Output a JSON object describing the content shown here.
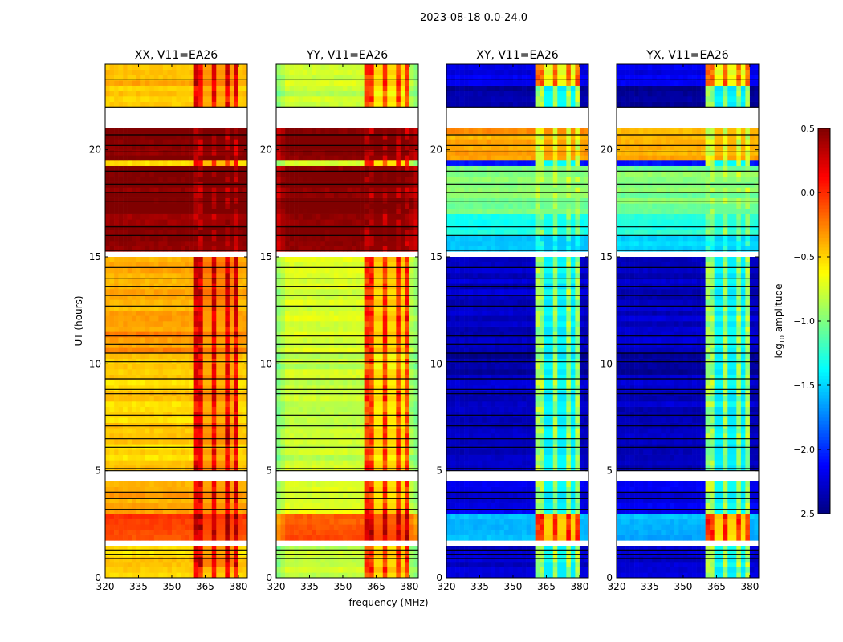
{
  "chart_data": {
    "type": "heatmap",
    "suptitle": "2023-08-18 0.0-24.0",
    "xlabel": "frequency (MHz)",
    "ylabel": "UT (hours)",
    "xlim": [
      320,
      384
    ],
    "ylim": [
      0,
      24
    ],
    "xticks": [
      "320",
      "335",
      "350",
      "365",
      "380"
    ],
    "yticks": [
      "0",
      "5",
      "10",
      "15",
      "20"
    ],
    "panels": [
      {
        "title": "XX, V11=EA26",
        "key": "xx"
      },
      {
        "title": "YY, V11=EA26",
        "key": "yy"
      },
      {
        "title": "XY, V11=EA26",
        "key": "xy"
      },
      {
        "title": "YX, V11=EA26",
        "key": "xy"
      }
    ],
    "colorbar": {
      "label": "log10 amplitude",
      "label_main": "log",
      "label_sub": "10",
      "label_rest": " amplitude",
      "range": [
        -2.5,
        0.5
      ],
      "ticks": [
        "0.5",
        "0.0",
        "−0.5",
        "−1.0",
        "−1.5",
        "−2.0",
        "−2.5"
      ],
      "colormap": "jet"
    },
    "segments_columns": [
      "t_start",
      "t_end",
      "xx_base",
      "xx_rfi",
      "yy_base",
      "yy_rfi",
      "xy_base",
      "xy_rfi"
    ],
    "segments": [
      [
        23.0,
        24.0,
        -0.42,
        0.2,
        -0.75,
        0.0,
        -2.2,
        -0.2
      ],
      [
        22.0,
        23.0,
        -0.5,
        0.1,
        -0.8,
        -0.1,
        -2.4,
        -0.9
      ],
      [
        21.3,
        22.0,
        null,
        null,
        null,
        null,
        null,
        null
      ],
      [
        19.5,
        21.0,
        0.5,
        0.35,
        0.5,
        0.35,
        -0.35,
        -0.7
      ],
      [
        19.2,
        19.5,
        -0.6,
        0.0,
        -0.8,
        -0.1,
        -2.1,
        -0.9
      ],
      [
        17.0,
        19.2,
        0.5,
        0.4,
        0.5,
        0.4,
        -1.0,
        -0.9
      ],
      [
        16.0,
        17.0,
        0.45,
        0.4,
        0.5,
        0.4,
        -1.3,
        -1.0
      ],
      [
        15.3,
        16.0,
        0.5,
        0.4,
        0.5,
        0.4,
        -1.5,
        -1.3
      ],
      [
        15.0,
        15.3,
        null,
        null,
        null,
        null,
        null,
        null
      ],
      [
        12.5,
        15.0,
        -0.4,
        0.25,
        -0.75,
        0.0,
        -2.3,
        -0.9
      ],
      [
        10.5,
        12.5,
        -0.3,
        0.2,
        -0.75,
        0.0,
        -2.3,
        -0.9
      ],
      [
        9.5,
        10.5,
        -0.5,
        0.1,
        -0.8,
        -0.1,
        -2.4,
        -0.9
      ],
      [
        5.0,
        9.5,
        -0.5,
        0.15,
        -0.8,
        -0.05,
        -2.3,
        -0.9
      ],
      [
        4.6,
        5.0,
        null,
        null,
        null,
        null,
        null,
        null
      ],
      [
        3.0,
        4.6,
        -0.35,
        0.2,
        -0.7,
        0.0,
        -2.2,
        -0.9
      ],
      [
        1.7,
        2.9,
        -0.05,
        0.35,
        -0.1,
        0.3,
        -1.6,
        0.0
      ],
      [
        0.6,
        1.6,
        -0.5,
        0.2,
        -0.8,
        0.0,
        -2.3,
        -0.9
      ],
      [
        0.4,
        0.6,
        null,
        null,
        null,
        null,
        null,
        null
      ],
      [
        0.0,
        0.4,
        -0.45,
        0.1,
        -0.8,
        0.0,
        -2.2,
        -0.9
      ]
    ],
    "flag_lines_hours": [
      0.9,
      1.1,
      1.3,
      3.2,
      3.7,
      4.0,
      5.0,
      5.1,
      6.1,
      6.5,
      7.1,
      7.6,
      8.6,
      8.8,
      9.3,
      10.1,
      10.5,
      10.9,
      11.3,
      12.7,
      13.2,
      13.6,
      14.0,
      14.5,
      15.3,
      16.0,
      16.4,
      17.6,
      18.0,
      18.4,
      19.0,
      19.9,
      20.2,
      20.7,
      22.0,
      23.3
    ]
  }
}
